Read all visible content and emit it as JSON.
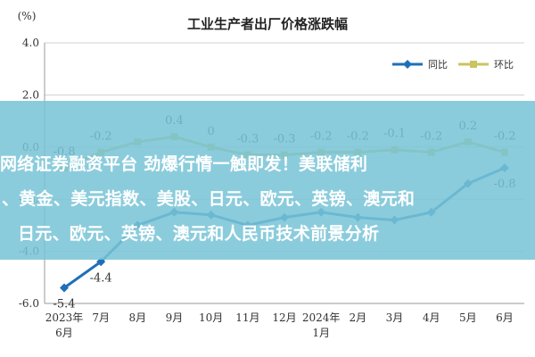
{
  "chart_data": {
    "type": "line",
    "title": "工业生产者出厂价格涨跌幅",
    "unit_label": "(%)",
    "categories": [
      "2023年6月",
      "7月",
      "8月",
      "9月",
      "10月",
      "11月",
      "12月",
      "2024年1月",
      "2月",
      "3月",
      "4月",
      "5月",
      "6月"
    ],
    "x_tick_lines": [
      [
        "2023年",
        "6月"
      ],
      [
        "7月"
      ],
      [
        "8月"
      ],
      [
        "9月"
      ],
      [
        "10月"
      ],
      [
        "11月"
      ],
      [
        "12月"
      ],
      [
        "2024年",
        "1月"
      ],
      [
        "2月"
      ],
      [
        "3月"
      ],
      [
        "4月"
      ],
      [
        "5月"
      ],
      [
        "6月"
      ]
    ],
    "y_ticks": [
      "4.0",
      "2.0",
      "0.0",
      "-2.0",
      "-4.0",
      "-6.0"
    ],
    "ylim": [
      -6.0,
      4.0
    ],
    "grid": true,
    "legend_position": "top-right",
    "series": [
      {
        "name": "同比",
        "color": "#1f6fb8",
        "values": [
          -5.4,
          -4.4,
          -3.0,
          -2.5,
          -2.6,
          -3.0,
          -2.7,
          -2.5,
          -2.7,
          -2.8,
          -2.5,
          -1.4,
          -0.8
        ],
        "labels": [
          "-5.4",
          "-4.4",
          "",
          "",
          "",
          "",
          "",
          "",
          "",
          "",
          "",
          "",
          "-0.8"
        ]
      },
      {
        "name": "环比",
        "color": "#c9c560",
        "values": [
          -0.8,
          -0.2,
          0.2,
          0.4,
          0.0,
          -0.3,
          -0.3,
          -0.2,
          -0.2,
          -0.1,
          -0.2,
          0.2,
          -0.2
        ],
        "labels": [
          "-0.8",
          "-0.2",
          "",
          "0.4",
          "0",
          "-0.3",
          "-0.3",
          "-0.2",
          "-0.2",
          "-0.1",
          "-0.2",
          "0.2",
          "-0.2"
        ]
      }
    ]
  },
  "overlay": {
    "lines": [
      "网络证券融资平台 劲爆行情一触即发！美联储利",
      "、黄金、美元指数、美股、日元、欧元、英镑、澳元和",
      "日元、欧元、英镑、澳元和人民币技术前景分析"
    ],
    "background": "#78c4d6"
  }
}
